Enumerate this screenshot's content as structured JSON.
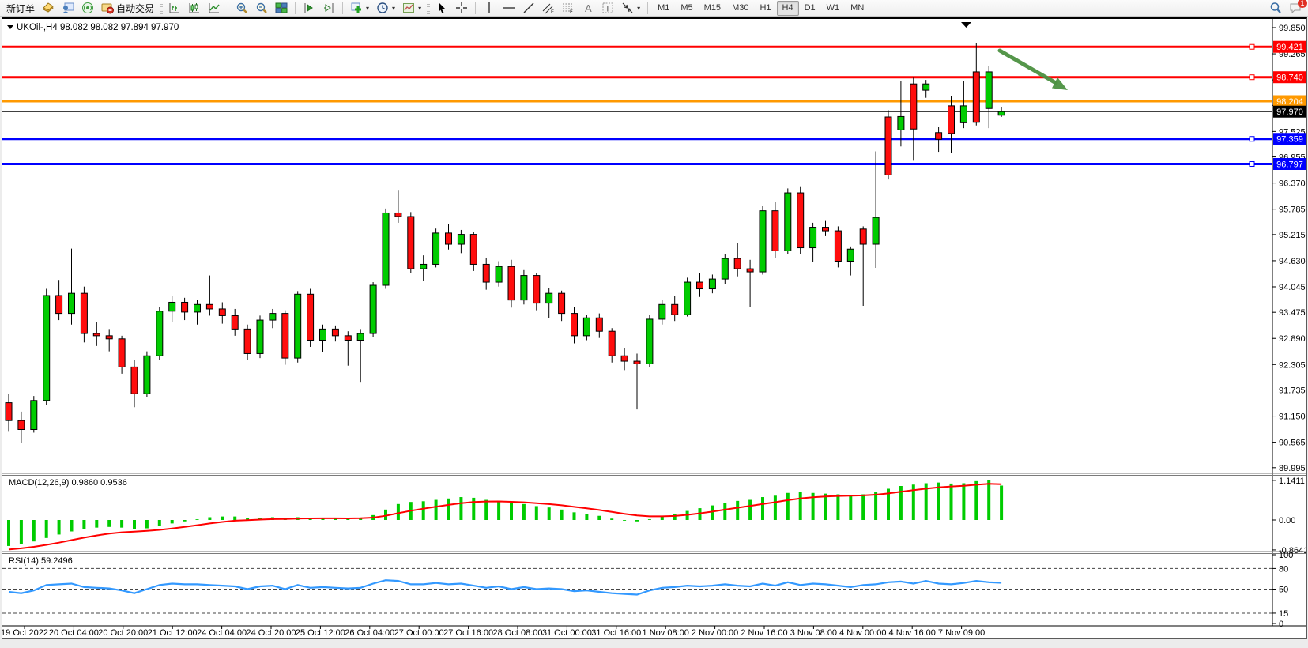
{
  "toolbar": {
    "new_order_label": "新订单",
    "autotrading_label": "自动交易",
    "notification_count": "1",
    "timeframes": [
      "M1",
      "M5",
      "M15",
      "M30",
      "H1",
      "H4",
      "D1",
      "W1",
      "MN"
    ],
    "active_timeframe": "H4"
  },
  "chart_header": {
    "symbol_period": "UKOil-,H4",
    "ohlc_text": "98.082 98.082 97.894 97.970"
  },
  "indicators": {
    "macd_label": "MACD(12,26,9) 0.9860 0.9536",
    "rsi_label": "RSI(14) 59.2496"
  },
  "colors": {
    "bull": "#00CC00",
    "bear": "#FF0D0D",
    "wick": "#000000",
    "resistance": "#FF0000",
    "pivot": "#FF9900",
    "support": "#0000FF",
    "current": "#000000",
    "rsi_line": "#3399FF",
    "macd_hist": "#00CC00",
    "macd_signal": "#FF0000",
    "arrow": "#4C9141"
  },
  "chart_data": {
    "type": "candlestick",
    "title": "UKOil-,H4",
    "ylim": [
      89.7,
      100.05
    ],
    "y_ticks": [
      "99.850",
      "99.265",
      "98.680",
      "98.110",
      "97.525",
      "96.955",
      "96.370",
      "95.785",
      "95.215",
      "94.630",
      "94.045",
      "93.475",
      "92.890",
      "92.305",
      "91.735",
      "91.150",
      "90.565",
      "89.995"
    ],
    "x_labels": [
      "19 Oct 2022",
      "20 Oct 04:00",
      "20 Oct 20:00",
      "21 Oct 12:00",
      "24 Oct 04:00",
      "24 Oct 20:00",
      "25 Oct 12:00",
      "26 Oct 04:00",
      "27 Oct 00:00",
      "27 Oct 16:00",
      "28 Oct 08:00",
      "31 Oct 00:00",
      "31 Oct 16:00",
      "1 Nov 08:00",
      "2 Nov 00:00",
      "2 Nov 16:00",
      "3 Nov 08:00",
      "4 Nov 00:00",
      "4 Nov 16:00",
      "7 Nov 09:00"
    ],
    "price_lines": [
      {
        "price": 99.421,
        "label": "99.421",
        "color": "#FF0000",
        "width": 3,
        "anchor": true
      },
      {
        "price": 98.74,
        "label": "98.740",
        "color": "#FF0000",
        "width": 3,
        "anchor": true
      },
      {
        "price": 98.204,
        "label": "98.204",
        "color": "#FF9900",
        "width": 3,
        "anchor": false
      },
      {
        "price": 97.97,
        "label": "97.970",
        "color": "#000000",
        "width": 1,
        "anchor": false
      },
      {
        "price": 97.359,
        "label": "97.359",
        "color": "#0000FF",
        "width": 3,
        "anchor": true
      },
      {
        "price": 96.797,
        "label": "96.797",
        "color": "#0000FF",
        "width": 3,
        "anchor": true
      }
    ],
    "current_price": 97.97,
    "candles": [
      [
        "19 Oct 00:00",
        91.45,
        91.65,
        90.8,
        91.05
      ],
      [
        "19 Oct 04:00",
        91.05,
        91.25,
        90.55,
        90.85
      ],
      [
        "19 Oct 08:00",
        90.85,
        91.6,
        90.78,
        91.5
      ],
      [
        "19 Oct 12:00",
        91.5,
        94.0,
        91.4,
        93.85
      ],
      [
        "19 Oct 16:00",
        93.85,
        94.2,
        93.3,
        93.45
      ],
      [
        "19 Oct 20:00",
        93.45,
        94.9,
        93.2,
        93.9
      ],
      [
        "20 Oct 00:00",
        93.9,
        94.05,
        92.8,
        93.0
      ],
      [
        "20 Oct 04:00",
        93.0,
        93.25,
        92.72,
        92.95
      ],
      [
        "20 Oct 08:00",
        92.95,
        93.1,
        92.6,
        92.88
      ],
      [
        "20 Oct 12:00",
        92.88,
        92.95,
        92.1,
        92.25
      ],
      [
        "20 Oct 16:00",
        92.25,
        92.4,
        91.35,
        91.65
      ],
      [
        "20 Oct 20:00",
        91.65,
        92.6,
        91.58,
        92.5
      ],
      [
        "21 Oct 00:00",
        92.5,
        93.6,
        92.4,
        93.5
      ],
      [
        "21 Oct 04:00",
        93.5,
        93.85,
        93.25,
        93.7
      ],
      [
        "21 Oct 08:00",
        93.7,
        93.8,
        93.3,
        93.48
      ],
      [
        "21 Oct 12:00",
        93.48,
        93.75,
        93.2,
        93.65
      ],
      [
        "21 Oct 16:00",
        93.65,
        94.3,
        93.4,
        93.55
      ],
      [
        "21 Oct 20:00",
        93.55,
        93.7,
        93.22,
        93.4
      ],
      [
        "24 Oct 00:00",
        93.4,
        93.55,
        92.95,
        93.1
      ],
      [
        "24 Oct 04:00",
        93.1,
        93.2,
        92.4,
        92.55
      ],
      [
        "24 Oct 08:00",
        92.55,
        93.4,
        92.45,
        93.3
      ],
      [
        "24 Oct 12:00",
        93.3,
        93.55,
        93.12,
        93.45
      ],
      [
        "24 Oct 16:00",
        93.45,
        93.52,
        92.3,
        92.45
      ],
      [
        "24 Oct 20:00",
        92.45,
        93.95,
        92.35,
        93.88
      ],
      [
        "25 Oct 00:00",
        93.88,
        94.0,
        92.7,
        92.85
      ],
      [
        "25 Oct 04:00",
        92.85,
        93.2,
        92.58,
        93.1
      ],
      [
        "25 Oct 08:00",
        93.1,
        93.18,
        92.82,
        92.95
      ],
      [
        "25 Oct 12:00",
        92.95,
        93.05,
        92.28,
        92.85
      ],
      [
        "25 Oct 16:00",
        92.85,
        93.1,
        91.9,
        93.0
      ],
      [
        "25 Oct 20:00",
        93.0,
        94.15,
        92.92,
        94.08
      ],
      [
        "26 Oct 00:00",
        94.08,
        95.8,
        94.0,
        95.7
      ],
      [
        "26 Oct 04:00",
        95.7,
        96.2,
        95.48,
        95.62
      ],
      [
        "26 Oct 08:00",
        95.62,
        95.72,
        94.35,
        94.45
      ],
      [
        "26 Oct 12:00",
        94.45,
        94.75,
        94.18,
        94.55
      ],
      [
        "26 Oct 16:00",
        94.55,
        95.35,
        94.48,
        95.25
      ],
      [
        "26 Oct 20:00",
        95.25,
        95.45,
        94.88,
        95.0
      ],
      [
        "27 Oct 00:00",
        95.0,
        95.32,
        94.8,
        95.22
      ],
      [
        "27 Oct 04:00",
        95.22,
        95.28,
        94.4,
        94.55
      ],
      [
        "27 Oct 08:00",
        94.55,
        94.7,
        93.98,
        94.15
      ],
      [
        "27 Oct 12:00",
        94.15,
        94.62,
        94.05,
        94.5
      ],
      [
        "27 Oct 16:00",
        94.5,
        94.65,
        93.58,
        93.75
      ],
      [
        "27 Oct 20:00",
        93.75,
        94.42,
        93.65,
        94.3
      ],
      [
        "28 Oct 00:00",
        94.3,
        94.36,
        93.52,
        93.68
      ],
      [
        "28 Oct 04:00",
        93.68,
        94.02,
        93.35,
        93.9
      ],
      [
        "28 Oct 08:00",
        93.9,
        93.96,
        93.28,
        93.45
      ],
      [
        "28 Oct 12:00",
        93.45,
        93.6,
        92.78,
        92.95
      ],
      [
        "28 Oct 16:00",
        92.95,
        93.42,
        92.85,
        93.35
      ],
      [
        "28 Oct 20:00",
        93.35,
        93.45,
        92.9,
        93.05
      ],
      [
        "31 Oct 00:00",
        93.05,
        93.12,
        92.35,
        92.5
      ],
      [
        "31 Oct 04:00",
        92.5,
        92.68,
        92.18,
        92.38
      ],
      [
        "31 Oct 08:00",
        92.38,
        92.55,
        91.3,
        92.32
      ],
      [
        "31 Oct 12:00",
        92.32,
        93.42,
        92.25,
        93.32
      ],
      [
        "31 Oct 16:00",
        93.32,
        93.75,
        93.2,
        93.65
      ],
      [
        "31 Oct 20:00",
        93.65,
        93.85,
        93.28,
        93.42
      ],
      [
        "1 Nov 00:00",
        93.42,
        94.25,
        93.38,
        94.15
      ],
      [
        "1 Nov 04:00",
        94.15,
        94.35,
        93.82,
        94.0
      ],
      [
        "1 Nov 08:00",
        94.0,
        94.32,
        93.9,
        94.22
      ],
      [
        "1 Nov 12:00",
        94.22,
        94.78,
        94.1,
        94.68
      ],
      [
        "1 Nov 16:00",
        94.68,
        95.02,
        94.28,
        94.45
      ],
      [
        "1 Nov 20:00",
        94.45,
        94.65,
        93.6,
        94.38
      ],
      [
        "2 Nov 00:00",
        94.38,
        95.85,
        94.32,
        95.75
      ],
      [
        "2 Nov 04:00",
        95.75,
        95.95,
        94.7,
        94.85
      ],
      [
        "2 Nov 08:00",
        94.85,
        96.25,
        94.78,
        96.15
      ],
      [
        "2 Nov 12:00",
        96.15,
        96.28,
        94.78,
        94.92
      ],
      [
        "2 Nov 16:00",
        94.92,
        95.48,
        94.6,
        95.38
      ],
      [
        "2 Nov 20:00",
        95.38,
        95.52,
        95.18,
        95.3
      ],
      [
        "3 Nov 00:00",
        95.3,
        95.4,
        94.48,
        94.62
      ],
      [
        "3 Nov 04:00",
        94.62,
        94.95,
        94.3,
        94.89
      ],
      [
        "3 Nov 08:00",
        95.34,
        95.4,
        93.62,
        95.0
      ],
      [
        "3 Nov 12:00",
        95.0,
        97.08,
        94.47,
        95.6
      ],
      [
        "3 Nov 16:00",
        97.85,
        98.0,
        96.45,
        96.55
      ],
      [
        "3 Nov 20:00",
        97.56,
        98.66,
        97.19,
        97.86
      ],
      [
        "4 Nov 00:00",
        98.59,
        98.73,
        96.87,
        97.58
      ],
      [
        "4 Nov 04:00",
        98.45,
        98.68,
        98.28,
        98.59
      ],
      [
        "4 Nov 08:00",
        97.5,
        97.62,
        97.07,
        97.35
      ],
      [
        "4 Nov 12:00",
        98.1,
        98.31,
        97.05,
        97.48
      ],
      [
        "4 Nov 16:00",
        97.72,
        98.65,
        97.6,
        98.1
      ],
      [
        "4 Nov 20:00",
        98.86,
        99.5,
        97.66,
        97.73
      ],
      [
        "7 Nov 05:00",
        98.04,
        99.0,
        97.6,
        98.86
      ],
      [
        "7 Nov 09:00",
        97.89,
        98.08,
        97.85,
        97.97
      ]
    ],
    "sub_indicators": [
      {
        "type": "bar",
        "name": "MACD",
        "params": "12,26,9",
        "macd_value": 0.986,
        "signal_value": 0.9536,
        "y_ticks": [
          "1.1411",
          "0.00",
          "-0.8641"
        ],
        "ylim": [
          -0.8641,
          1.1411
        ],
        "values": [
          -0.75,
          -0.7,
          -0.62,
          -0.52,
          -0.42,
          -0.33,
          -0.26,
          -0.22,
          -0.2,
          -0.22,
          -0.26,
          -0.24,
          -0.18,
          -0.1,
          -0.04,
          0.02,
          0.08,
          0.1,
          0.1,
          0.06,
          0.06,
          0.08,
          0.04,
          0.08,
          0.06,
          0.06,
          0.05,
          0.04,
          0.06,
          0.14,
          0.3,
          0.46,
          0.52,
          0.54,
          0.58,
          0.62,
          0.66,
          0.64,
          0.58,
          0.55,
          0.48,
          0.46,
          0.4,
          0.36,
          0.3,
          0.22,
          0.18,
          0.12,
          0.04,
          -0.02,
          -0.04,
          0.02,
          0.1,
          0.16,
          0.26,
          0.34,
          0.42,
          0.5,
          0.55,
          0.58,
          0.66,
          0.7,
          0.78,
          0.8,
          0.78,
          0.76,
          0.74,
          0.72,
          0.74,
          0.8,
          0.9,
          0.98,
          1.02,
          1.06,
          1.08,
          1.05,
          1.06,
          1.12,
          1.14,
          0.99
        ]
      },
      {
        "type": "line",
        "name": "RSI",
        "params": "14",
        "last_value": 59.2496,
        "y_ticks": [
          "100",
          "80",
          "50",
          "15",
          "0"
        ],
        "levels": [
          80,
          50,
          15
        ],
        "ylim": [
          0,
          100
        ],
        "values": [
          46,
          44,
          48,
          56,
          57,
          58,
          53,
          52,
          51,
          48,
          44,
          50,
          56,
          58,
          57,
          57,
          56,
          55,
          54,
          50,
          54,
          55,
          50,
          56,
          52,
          53,
          52,
          51,
          52,
          58,
          63,
          62,
          57,
          57,
          59,
          57,
          58,
          55,
          52,
          54,
          50,
          53,
          50,
          51,
          50,
          47,
          48,
          46,
          44,
          43,
          42,
          48,
          52,
          53,
          55,
          54,
          55,
          57,
          55,
          54,
          58,
          55,
          60,
          56,
          58,
          57,
          55,
          53,
          56,
          57,
          60,
          61,
          58,
          62,
          58,
          57,
          59,
          62,
          60,
          59.2
        ]
      }
    ],
    "annotation_arrow": {
      "from_xy": [
        1262,
        40
      ],
      "to_xy": [
        1345,
        88
      ],
      "color": "#4C9141"
    }
  }
}
